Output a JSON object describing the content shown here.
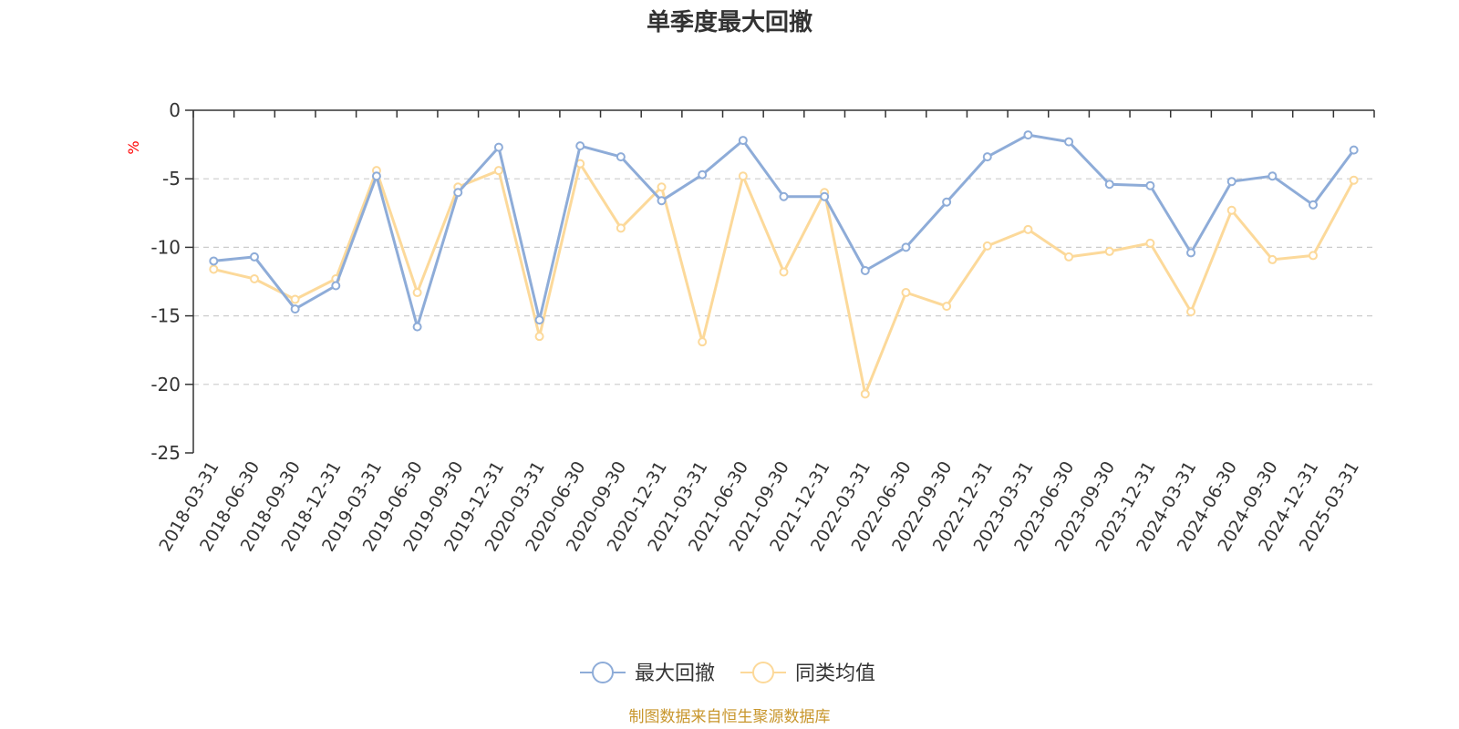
{
  "chart_data": {
    "type": "line",
    "title": "单季度最大回撤",
    "ylabel": "%",
    "ylim": [
      -25,
      0
    ],
    "yticks": [
      0,
      -5,
      -10,
      -15,
      -20,
      -25
    ],
    "grid": true,
    "legend_position": "bottom",
    "categories": [
      "2018-03-31",
      "2018-06-30",
      "2018-09-30",
      "2018-12-31",
      "2019-03-31",
      "2019-06-30",
      "2019-09-30",
      "2019-12-31",
      "2020-03-31",
      "2020-06-30",
      "2020-09-30",
      "2020-12-31",
      "2021-03-31",
      "2021-06-30",
      "2021-09-30",
      "2021-12-31",
      "2022-03-31",
      "2022-06-30",
      "2022-09-30",
      "2022-12-31",
      "2023-03-31",
      "2023-06-30",
      "2023-09-30",
      "2023-12-31",
      "2024-03-31",
      "2024-06-30",
      "2024-09-30",
      "2024-12-31",
      "2025-03-31"
    ],
    "series": [
      {
        "name": "最大回撤",
        "color": "#8eacd8",
        "values": [
          -11.0,
          -10.7,
          -14.5,
          -12.8,
          -4.8,
          -15.8,
          -6.0,
          -2.7,
          -15.3,
          -2.6,
          -3.4,
          -6.6,
          -4.7,
          -2.2,
          -6.3,
          -6.3,
          -11.7,
          -10.0,
          -6.7,
          -3.4,
          -1.8,
          -2.3,
          -5.4,
          -5.5,
          -10.4,
          -5.2,
          -4.8,
          -6.9,
          -2.9
        ]
      },
      {
        "name": "同类均值",
        "color": "#fcd99a",
        "values": [
          -11.6,
          -12.3,
          -13.8,
          -12.3,
          -4.4,
          -13.3,
          -5.6,
          -4.4,
          -16.5,
          -3.9,
          -8.6,
          -5.6,
          -16.9,
          -4.8,
          -11.8,
          -6.0,
          -20.7,
          -13.3,
          -14.3,
          -9.9,
          -8.7,
          -10.7,
          -10.3,
          -9.7,
          -14.7,
          -7.3,
          -10.9,
          -10.6,
          -5.1
        ]
      }
    ]
  },
  "footer": "制图数据来自恒生聚源数据库"
}
